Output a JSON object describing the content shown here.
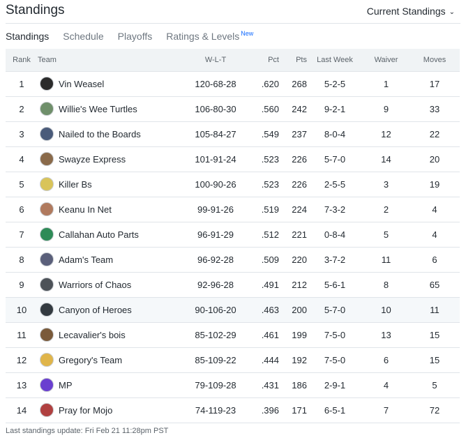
{
  "header": {
    "title": "Standings",
    "standings_select": "Current Standings"
  },
  "tabs": [
    {
      "label": "Standings",
      "active": true
    },
    {
      "label": "Schedule",
      "active": false
    },
    {
      "label": "Playoffs",
      "active": false
    },
    {
      "label": "Ratings & Levels",
      "badge": "New",
      "active": false
    }
  ],
  "table": {
    "columns": [
      "Rank",
      "Team",
      "W-L-T",
      "Pct",
      "Pts",
      "Last Week",
      "Waiver",
      "Moves"
    ],
    "rows": [
      {
        "rank": "1",
        "team": "Vin Weasel",
        "wlt": "120-68-28",
        "pct": ".620",
        "pts": "268",
        "last_week": "5-2-5",
        "waiver": "1",
        "moves": "17",
        "logo_color": "#2b2b2b"
      },
      {
        "rank": "2",
        "team": "Willie's Wee Turtles",
        "wlt": "106-80-30",
        "pct": ".560",
        "pts": "242",
        "last_week": "9-2-1",
        "waiver": "9",
        "moves": "33",
        "logo_color": "#6f8f6a"
      },
      {
        "rank": "3",
        "team": "Nailed to the Boards",
        "wlt": "105-84-27",
        "pct": ".549",
        "pts": "237",
        "last_week": "8-0-4",
        "waiver": "12",
        "moves": "22",
        "logo_color": "#4a5b7a"
      },
      {
        "rank": "4",
        "team": "Swayze Express",
        "wlt": "101-91-24",
        "pct": ".523",
        "pts": "226",
        "last_week": "5-7-0",
        "waiver": "14",
        "moves": "20",
        "logo_color": "#8a6a4a"
      },
      {
        "rank": "5",
        "team": "Killer Bs",
        "wlt": "100-90-26",
        "pct": ".523",
        "pts": "226",
        "last_week": "2-5-5",
        "waiver": "3",
        "moves": "19",
        "logo_color": "#d9c45a"
      },
      {
        "rank": "6",
        "team": "Keanu In Net",
        "wlt": "99-91-26",
        "pct": ".519",
        "pts": "224",
        "last_week": "7-3-2",
        "waiver": "2",
        "moves": "4",
        "logo_color": "#b07a5e"
      },
      {
        "rank": "7",
        "team": "Callahan Auto Parts",
        "wlt": "96-91-29",
        "pct": ".512",
        "pts": "221",
        "last_week": "0-8-4",
        "waiver": "5",
        "moves": "4",
        "logo_color": "#2e8b57"
      },
      {
        "rank": "8",
        "team": "Adam's Team",
        "wlt": "96-92-28",
        "pct": ".509",
        "pts": "220",
        "last_week": "3-7-2",
        "waiver": "11",
        "moves": "6",
        "logo_color": "#5a5f7a"
      },
      {
        "rank": "9",
        "team": "Warriors of Chaos",
        "wlt": "92-96-28",
        "pct": ".491",
        "pts": "212",
        "last_week": "5-6-1",
        "waiver": "8",
        "moves": "65",
        "logo_color": "#4d5258"
      },
      {
        "rank": "10",
        "team": "Canyon of Heroes",
        "wlt": "90-106-20",
        "pct": ".463",
        "pts": "200",
        "last_week": "5-7-0",
        "waiver": "10",
        "moves": "11",
        "logo_color": "#333a40"
      },
      {
        "rank": "11",
        "team": "Lecavalier's bois",
        "wlt": "85-102-29",
        "pct": ".461",
        "pts": "199",
        "last_week": "7-5-0",
        "waiver": "13",
        "moves": "15",
        "logo_color": "#7a5a3a"
      },
      {
        "rank": "12",
        "team": "Gregory's Team",
        "wlt": "85-109-22",
        "pct": ".444",
        "pts": "192",
        "last_week": "7-5-0",
        "waiver": "6",
        "moves": "15",
        "logo_color": "#e0b54a"
      },
      {
        "rank": "13",
        "team": "MP",
        "wlt": "79-109-28",
        "pct": ".431",
        "pts": "186",
        "last_week": "2-9-1",
        "waiver": "4",
        "moves": "5",
        "logo_color": "#6a3fd0"
      },
      {
        "rank": "14",
        "team": "Pray for Mojo",
        "wlt": "74-119-23",
        "pct": ".396",
        "pts": "171",
        "last_week": "6-5-1",
        "waiver": "7",
        "moves": "72",
        "logo_color": "#b04040"
      }
    ],
    "highlighted_row": "10"
  },
  "footer": {
    "last_update": "Last standings update: Fri Feb 21 11:28pm PST"
  }
}
